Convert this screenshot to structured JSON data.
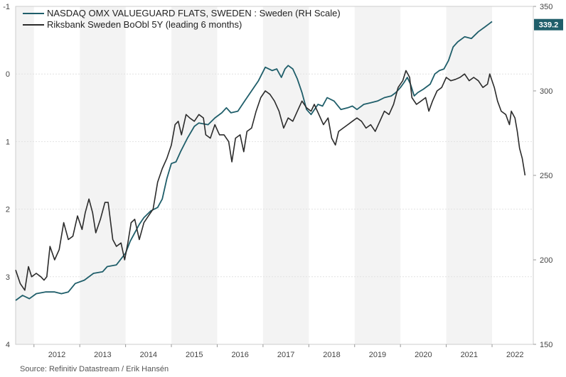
{
  "chart_data": {
    "type": "line",
    "title": "",
    "xlabel": "",
    "x_ticks": [
      "2012",
      "2013",
      "2014",
      "2015",
      "2016",
      "2017",
      "2018",
      "2019",
      "2020",
      "2021",
      "2022"
    ],
    "left_axis": {
      "label": "",
      "range": [
        -1,
        4
      ],
      "inverted": true,
      "ticks": [
        "-1",
        "0",
        "1",
        "2",
        "3",
        "4"
      ]
    },
    "right_axis": {
      "label": "",
      "range": [
        150,
        350
      ],
      "ticks": [
        "150",
        "200",
        "250",
        "300",
        "350"
      ]
    },
    "last_value_badge": "339.2",
    "grid": true,
    "legend_position": "top-left",
    "series": [
      {
        "name": "NASDAQ OMX VALUEGUARD FLATS, SWEDEN : Sweden (RH Scale)",
        "axis": "right",
        "color": "#1f5e6a",
        "points": [
          [
            2011.6,
            176
          ],
          [
            2011.75,
            179
          ],
          [
            2011.9,
            177
          ],
          [
            2012.05,
            180
          ],
          [
            2012.25,
            181
          ],
          [
            2012.45,
            181
          ],
          [
            2012.6,
            180
          ],
          [
            2012.75,
            181
          ],
          [
            2012.9,
            186
          ],
          [
            2013.1,
            188
          ],
          [
            2013.3,
            192
          ],
          [
            2013.5,
            193
          ],
          [
            2013.6,
            196
          ],
          [
            2013.8,
            197
          ],
          [
            2014.0,
            204
          ],
          [
            2014.1,
            211
          ],
          [
            2014.2,
            216
          ],
          [
            2014.3,
            221
          ],
          [
            2014.4,
            225
          ],
          [
            2014.55,
            229
          ],
          [
            2014.7,
            231
          ],
          [
            2014.8,
            236
          ],
          [
            2014.9,
            248
          ],
          [
            2015.0,
            257
          ],
          [
            2015.1,
            258
          ],
          [
            2015.2,
            264
          ],
          [
            2015.35,
            272
          ],
          [
            2015.5,
            279
          ],
          [
            2015.6,
            281
          ],
          [
            2015.8,
            280
          ],
          [
            2015.95,
            284
          ],
          [
            2016.1,
            287
          ],
          [
            2016.2,
            290
          ],
          [
            2016.3,
            287
          ],
          [
            2016.45,
            288
          ],
          [
            2016.6,
            294
          ],
          [
            2016.75,
            300
          ],
          [
            2016.9,
            306
          ],
          [
            2017.05,
            314
          ],
          [
            2017.2,
            312
          ],
          [
            2017.3,
            313
          ],
          [
            2017.4,
            308
          ],
          [
            2017.48,
            313
          ],
          [
            2017.55,
            315
          ],
          [
            2017.65,
            313
          ],
          [
            2017.75,
            307
          ],
          [
            2017.85,
            299
          ],
          [
            2017.95,
            289
          ],
          [
            2018.05,
            286
          ],
          [
            2018.2,
            292
          ],
          [
            2018.3,
            291
          ],
          [
            2018.4,
            296
          ],
          [
            2018.55,
            294
          ],
          [
            2018.7,
            289
          ],
          [
            2018.85,
            290
          ],
          [
            2018.95,
            291
          ],
          [
            2019.05,
            289
          ],
          [
            2019.2,
            292
          ],
          [
            2019.35,
            293
          ],
          [
            2019.5,
            294
          ],
          [
            2019.65,
            296
          ],
          [
            2019.8,
            297
          ],
          [
            2019.9,
            299
          ],
          [
            2020.0,
            302
          ],
          [
            2020.08,
            305
          ],
          [
            2020.15,
            308
          ],
          [
            2020.22,
            304
          ],
          [
            2020.3,
            297
          ],
          [
            2020.38,
            299
          ],
          [
            2020.5,
            301
          ],
          [
            2020.65,
            304
          ],
          [
            2020.75,
            310
          ],
          [
            2020.85,
            312
          ],
          [
            2020.95,
            313
          ],
          [
            2021.05,
            318
          ],
          [
            2021.15,
            326
          ],
          [
            2021.25,
            329
          ],
          [
            2021.4,
            332
          ],
          [
            2021.55,
            331
          ],
          [
            2021.7,
            335
          ],
          [
            2021.85,
            338
          ],
          [
            2021.95,
            340
          ],
          [
            2022.0,
            341
          ]
        ]
      },
      {
        "name": "Riksbank Sweden BoObl 5Y (leading 6 months)",
        "axis": "left",
        "color": "#2b2b2b",
        "points": [
          [
            2011.6,
            2.9
          ],
          [
            2011.7,
            3.1
          ],
          [
            2011.8,
            3.2
          ],
          [
            2011.88,
            2.85
          ],
          [
            2011.95,
            3.0
          ],
          [
            2012.05,
            2.95
          ],
          [
            2012.15,
            3.0
          ],
          [
            2012.22,
            3.05
          ],
          [
            2012.28,
            3.0
          ],
          [
            2012.35,
            2.55
          ],
          [
            2012.45,
            2.75
          ],
          [
            2012.55,
            2.6
          ],
          [
            2012.65,
            2.2
          ],
          [
            2012.75,
            2.45
          ],
          [
            2012.85,
            2.4
          ],
          [
            2012.95,
            2.1
          ],
          [
            2013.05,
            2.3
          ],
          [
            2013.12,
            2.05
          ],
          [
            2013.2,
            1.85
          ],
          [
            2013.28,
            2.05
          ],
          [
            2013.35,
            2.35
          ],
          [
            2013.45,
            2.15
          ],
          [
            2013.55,
            1.9
          ],
          [
            2013.62,
            1.9
          ],
          [
            2013.72,
            2.45
          ],
          [
            2013.8,
            2.55
          ],
          [
            2013.9,
            2.5
          ],
          [
            2013.98,
            2.75
          ],
          [
            2014.05,
            2.5
          ],
          [
            2014.12,
            2.2
          ],
          [
            2014.2,
            2.15
          ],
          [
            2014.3,
            2.45
          ],
          [
            2014.4,
            2.2
          ],
          [
            2014.5,
            2.1
          ],
          [
            2014.6,
            2.0
          ],
          [
            2014.7,
            1.6
          ],
          [
            2014.8,
            1.4
          ],
          [
            2014.9,
            1.25
          ],
          [
            2015.0,
            1.05
          ],
          [
            2015.08,
            0.75
          ],
          [
            2015.15,
            0.7
          ],
          [
            2015.22,
            0.9
          ],
          [
            2015.32,
            0.6
          ],
          [
            2015.4,
            0.65
          ],
          [
            2015.5,
            0.7
          ],
          [
            2015.6,
            0.6
          ],
          [
            2015.7,
            0.65
          ],
          [
            2015.75,
            0.9
          ],
          [
            2015.85,
            0.95
          ],
          [
            2015.95,
            0.75
          ],
          [
            2016.05,
            0.9
          ],
          [
            2016.15,
            0.9
          ],
          [
            2016.25,
            1.0
          ],
          [
            2016.32,
            1.3
          ],
          [
            2016.4,
            0.95
          ],
          [
            2016.5,
            0.9
          ],
          [
            2016.58,
            1.15
          ],
          [
            2016.65,
            0.85
          ],
          [
            2016.75,
            0.8
          ],
          [
            2016.85,
            0.55
          ],
          [
            2016.95,
            0.35
          ],
          [
            2017.05,
            0.25
          ],
          [
            2017.15,
            0.3
          ],
          [
            2017.25,
            0.4
          ],
          [
            2017.35,
            0.55
          ],
          [
            2017.45,
            0.8
          ],
          [
            2017.55,
            0.65
          ],
          [
            2017.65,
            0.7
          ],
          [
            2017.75,
            0.55
          ],
          [
            2017.85,
            0.4
          ],
          [
            2017.95,
            0.5
          ],
          [
            2018.05,
            0.55
          ],
          [
            2018.12,
            0.45
          ],
          [
            2018.22,
            0.6
          ],
          [
            2018.32,
            0.75
          ],
          [
            2018.42,
            0.65
          ],
          [
            2018.5,
            0.95
          ],
          [
            2018.58,
            1.05
          ],
          [
            2018.65,
            0.85
          ],
          [
            2018.75,
            0.8
          ],
          [
            2018.85,
            0.75
          ],
          [
            2018.95,
            0.7
          ],
          [
            2019.05,
            0.65
          ],
          [
            2019.15,
            0.7
          ],
          [
            2019.25,
            0.8
          ],
          [
            2019.35,
            0.75
          ],
          [
            2019.45,
            0.85
          ],
          [
            2019.55,
            0.7
          ],
          [
            2019.65,
            0.55
          ],
          [
            2019.75,
            0.6
          ],
          [
            2019.85,
            0.45
          ],
          [
            2019.95,
            0.2
          ],
          [
            2020.05,
            0.1
          ],
          [
            2020.12,
            -0.05
          ],
          [
            2020.2,
            0.05
          ],
          [
            2020.25,
            0.35
          ],
          [
            2020.35,
            0.45
          ],
          [
            2020.45,
            0.4
          ],
          [
            2020.55,
            0.35
          ],
          [
            2020.62,
            0.55
          ],
          [
            2020.7,
            0.4
          ],
          [
            2020.8,
            0.25
          ],
          [
            2020.9,
            0.2
          ],
          [
            2021.0,
            0.05
          ],
          [
            2021.1,
            0.1
          ],
          [
            2021.2,
            0.08
          ],
          [
            2021.3,
            0.05
          ],
          [
            2021.4,
            0.0
          ],
          [
            2021.5,
            0.1
          ],
          [
            2021.6,
            0.05
          ],
          [
            2021.7,
            0.1
          ],
          [
            2021.8,
            0.2
          ],
          [
            2021.9,
            0.15
          ],
          [
            2021.95,
            0.0
          ],
          [
            2022.05,
            0.2
          ],
          [
            2022.12,
            0.4
          ],
          [
            2022.2,
            0.55
          ],
          [
            2022.3,
            0.6
          ],
          [
            2022.38,
            0.75
          ],
          [
            2022.42,
            0.55
          ],
          [
            2022.5,
            0.65
          ],
          [
            2022.55,
            0.85
          ],
          [
            2022.6,
            1.1
          ],
          [
            2022.66,
            1.25
          ],
          [
            2022.72,
            1.5
          ]
        ]
      }
    ]
  },
  "source": "Source: Refinitiv Datastream / Erik Hansén"
}
